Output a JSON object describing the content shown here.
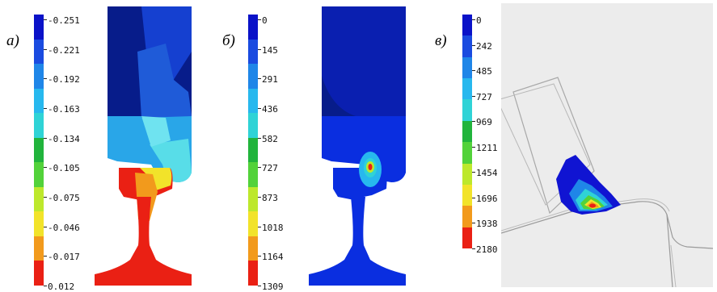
{
  "panels": [
    {
      "label": "а)",
      "ticks": [
        "-0.251",
        "-0.221",
        "-0.192",
        "-0.163",
        "-0.134",
        "-0.105",
        "-0.075",
        "-0.046",
        "-0.017",
        "0.012"
      ],
      "colors": [
        "#0a12c8",
        "#1a4be0",
        "#1f86e8",
        "#27b8ee",
        "#2fd3d6",
        "#21b43c",
        "#52d23a",
        "#bde82c",
        "#f2e32a",
        "#f29a1c",
        "#ea2014"
      ]
    },
    {
      "label": "б)",
      "ticks": [
        "0",
        "145",
        "291",
        "436",
        "582",
        "727",
        "873",
        "1018",
        "1164",
        "1309"
      ],
      "colors": [
        "#0a12c8",
        "#1a4be0",
        "#1f86e8",
        "#27b8ee",
        "#2fd3d6",
        "#21b43c",
        "#52d23a",
        "#bde82c",
        "#f2e32a",
        "#f29a1c",
        "#ea2014"
      ]
    },
    {
      "label": "в)",
      "ticks": [
        "0",
        "242",
        "485",
        "727",
        "969",
        "1211",
        "1454",
        "1696",
        "1938",
        "2180"
      ],
      "colors": [
        "#0a12c8",
        "#1a4be0",
        "#1f86e8",
        "#27b8ee",
        "#2fd3d6",
        "#21b43c",
        "#52d23a",
        "#bde82c",
        "#f2e32a",
        "#f29a1c",
        "#ea2014"
      ]
    }
  ]
}
